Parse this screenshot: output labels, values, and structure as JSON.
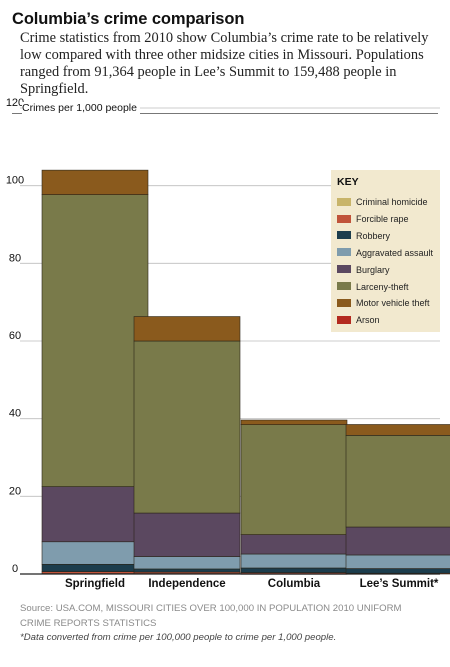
{
  "header": {
    "title": "Columbia’s crime comparison",
    "subtitle": "Crime statistics from 2010 show Columbia’s crime rate to be relatively low compared with three other midsize cities in Missouri. Populations ranged from 91,364 people in Lee’s Summit to 159,488 people in Springfield."
  },
  "legend": {
    "title": "KEY"
  },
  "chart_data": {
    "type": "bar",
    "stacked": true,
    "ylabel": "Crimes per 1,000 people",
    "ylim": [
      0,
      120
    ],
    "yticks": [
      "0",
      "20",
      "40",
      "60",
      "80",
      "100",
      "120"
    ],
    "grid": true,
    "legend_position": "top-right",
    "categories": [
      "Springfield",
      "Independence",
      "Columbia",
      "Lee’s Summit*"
    ],
    "series": [
      {
        "name": "Criminal homicide",
        "color": "#c8b46a",
        "values": [
          0.1,
          0.1,
          0.05,
          0.0
        ]
      },
      {
        "name": "Forcible rape",
        "color": "#c0533a",
        "values": [
          0.5,
          0.4,
          0.3,
          0.2
        ]
      },
      {
        "name": "Robbery",
        "color": "#1c3d4d",
        "values": [
          1.9,
          0.8,
          1.2,
          1.2
        ]
      },
      {
        "name": "Aggravated assault",
        "color": "#7f9cad",
        "values": [
          5.8,
          3.2,
          3.6,
          3.5
        ]
      },
      {
        "name": "Burglary",
        "color": "#5b4860",
        "values": [
          14.2,
          11.2,
          5.0,
          7.2
        ]
      },
      {
        "name": "Larceny-theft",
        "color": "#797a4a",
        "values": [
          75.2,
          44.3,
          28.3,
          23.6
        ]
      },
      {
        "name": "Motor vehicle theft",
        "color": "#8a5a1d",
        "values": [
          6.3,
          6.3,
          1.2,
          2.8
        ]
      },
      {
        "name": "Arson",
        "color": "#b32a1f",
        "values": [
          0.0,
          0.0,
          0.0,
          0.0
        ]
      }
    ]
  },
  "footer": {
    "source": "Source: USA.COM, MISSOURI CITIES OVER 100,000 IN POPULATION 2010 UNIFORM CRIME REPORTS STATISTICS",
    "footnote": "*Data converted from crime per 100,000 people to crime per 1,000 people."
  }
}
